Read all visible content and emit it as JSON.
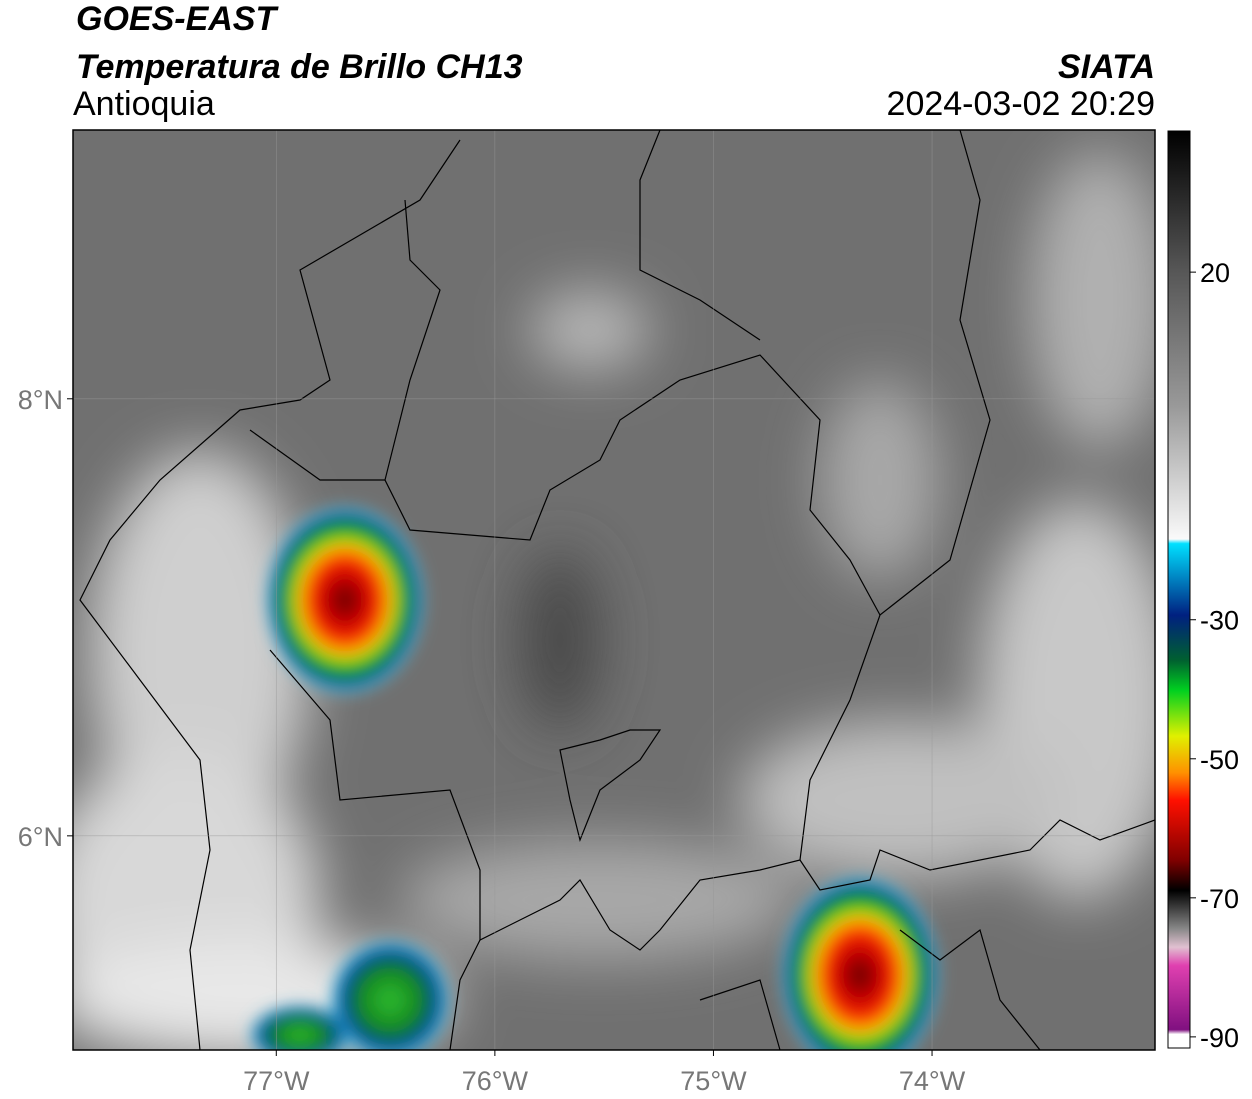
{
  "header": {
    "title": "GOES-EAST",
    "subtitle": "Temperatura de Brillo CH13",
    "region": "Antioquia",
    "source": "SIATA",
    "datetime": "2024-03-02 20:29"
  },
  "map": {
    "xlim": [
      -77.93,
      -72.98
    ],
    "ylim": [
      5.02,
      9.23
    ],
    "xticks": [
      {
        "value": -77,
        "label": "77°W"
      },
      {
        "value": -76,
        "label": "76°W"
      },
      {
        "value": -75,
        "label": "75°W"
      },
      {
        "value": -74,
        "label": "74°W"
      }
    ],
    "yticks": [
      {
        "value": 8,
        "label": "8°N"
      },
      {
        "value": 6,
        "label": "6°N"
      }
    ],
    "grid": true
  },
  "colorbar": {
    "lim": [
      -91.6,
      40.3
    ],
    "ticks": [
      20,
      -30,
      -50,
      -70,
      -90
    ]
  }
}
